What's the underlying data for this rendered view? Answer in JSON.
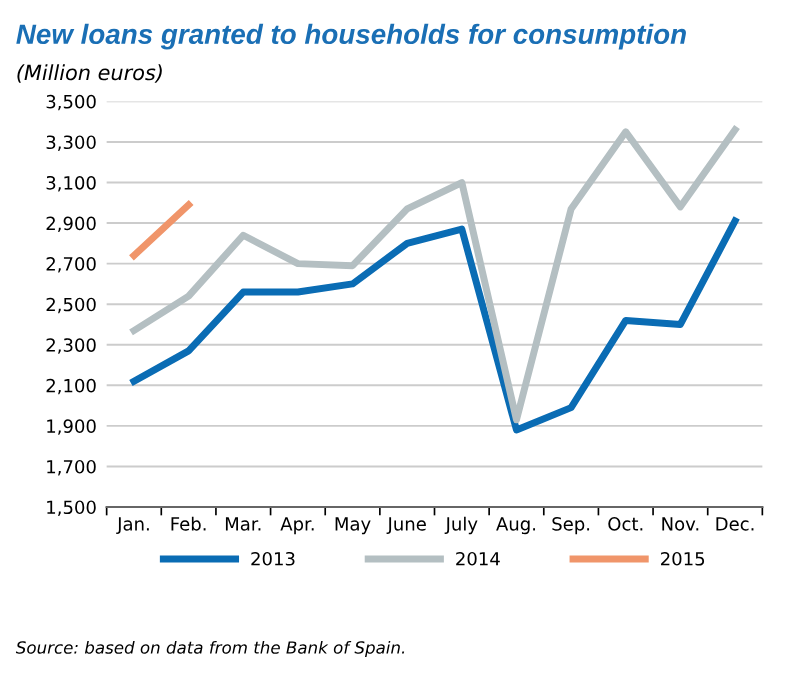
{
  "chart_data": {
    "type": "line",
    "title": "New loans granted to households for consumption",
    "subtitle": "(Million euros)",
    "categories": [
      "Jan.",
      "Feb.",
      "Mar.",
      "Apr.",
      "May",
      "June",
      "July",
      "Aug.",
      "Sep.",
      "Oct.",
      "Nov.",
      "Dec."
    ],
    "series": [
      {
        "name": "2013",
        "color": "#0a6cb4",
        "values": [
          2120,
          2270,
          2560,
          2560,
          2600,
          2800,
          2870,
          1880,
          1990,
          2420,
          2400,
          2910
        ]
      },
      {
        "name": "2014",
        "color": "#b4bfc2",
        "values": [
          2370,
          2540,
          2840,
          2700,
          2690,
          2970,
          3100,
          1930,
          2970,
          3350,
          2980,
          3360
        ]
      },
      {
        "name": "2015",
        "color": "#f0956a",
        "values": [
          2740,
          2990,
          null,
          null,
          null,
          null,
          null,
          null,
          null,
          null,
          null,
          null
        ]
      }
    ],
    "ylim": [
      1500,
      3500
    ],
    "yticks": [
      {
        "value": 1500,
        "label": "1,500"
      },
      {
        "value": 1700,
        "label": "1,700"
      },
      {
        "value": 1900,
        "label": "1,900"
      },
      {
        "value": 2100,
        "label": "2,100"
      },
      {
        "value": 2300,
        "label": "2,300"
      },
      {
        "value": 2500,
        "label": "2,500"
      },
      {
        "value": 2700,
        "label": "2,700"
      },
      {
        "value": 2900,
        "label": "2,900"
      },
      {
        "value": 3100,
        "label": "3,100"
      },
      {
        "value": 3300,
        "label": "3,300"
      },
      {
        "value": 3500,
        "label": "3,500"
      }
    ],
    "grid": "y",
    "legend": "bottom",
    "marker": "none",
    "line_style": "solid",
    "annotations": [
      "Source: based on data from the Bank of Spain."
    ]
  }
}
